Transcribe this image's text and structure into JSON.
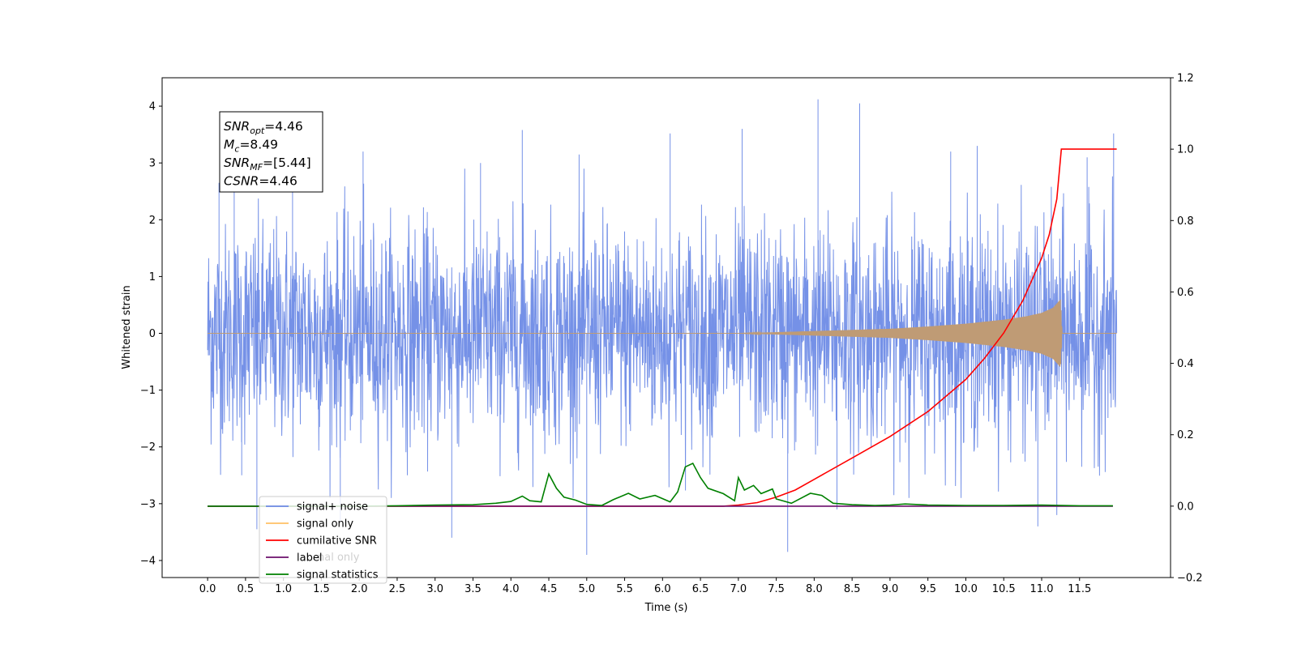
{
  "chart_data": {
    "type": "line",
    "title": "",
    "xlabel": "Time (s)",
    "ylabel": "Whitened strain",
    "ylabel_right": "",
    "xlim": [
      -0.6,
      12.7
    ],
    "ylim": [
      -4.3,
      4.5
    ],
    "ylim_right": [
      -0.2,
      1.2
    ],
    "x_ticks": [
      0.0,
      0.5,
      1.0,
      1.5,
      2.0,
      2.5,
      3.0,
      3.5,
      4.0,
      4.5,
      5.0,
      5.5,
      6.0,
      6.5,
      7.0,
      7.5,
      8.0,
      8.5,
      9.0,
      9.5,
      10.0,
      10.5,
      11.0,
      11.5
    ],
    "x_tick_labels": [
      "0.0",
      "0.5",
      "1.0",
      "1.5",
      "2.0",
      "2.5",
      "3.0",
      "3.5",
      "4.0",
      "4.5",
      "5.0",
      "5.5",
      "6.0",
      "6.5",
      "7.0",
      "7.5",
      "8.0",
      "8.5",
      "9.0",
      "9.5",
      "10.0",
      "10.5",
      "11.0",
      "11.5"
    ],
    "y_ticks": [
      4,
      3,
      2,
      1,
      0,
      -1,
      -2,
      -3,
      -4
    ],
    "y_tick_labels": [
      "4",
      "3",
      "2",
      "1",
      "0",
      "−1",
      "−2",
      "−3",
      "−4"
    ],
    "y_right_ticks": [
      1.2,
      1.0,
      0.8,
      0.6,
      0.4,
      0.2,
      0.0,
      -0.2
    ],
    "y_right_tick_labels": [
      "1.2",
      "1.0",
      "0.8",
      "0.6",
      "0.4",
      "0.2",
      "0.0",
      "−0.2"
    ],
    "grid": false,
    "legend_position": "lower-left",
    "legend": [
      {
        "label": "signal+ noise",
        "color": "#6e8be6"
      },
      {
        "label": "signal only",
        "color": "#ffc065"
      },
      {
        "label": "cumilative SNR",
        "color": "#ff0000"
      },
      {
        "label": "label",
        "color": "#6b0f6b"
      },
      {
        "label": "signal statistics",
        "color": "#008000"
      }
    ],
    "hidden_legend_fragment": "nal only",
    "annotation": {
      "lines": [
        {
          "main": "SNR",
          "sub": "opt",
          "rest": "=4.46"
        },
        {
          "main": "M",
          "sub": "c",
          "rest": "=8.49"
        },
        {
          "main": "SNR",
          "sub": "MF",
          "rest": "=[5.44]"
        },
        {
          "main": "CSNR",
          "sub": "",
          "rest": "=4.46"
        }
      ]
    },
    "series": [
      {
        "name": "signal+ noise",
        "axis": "left",
        "color": "#6e8be6",
        "x_range": [
          0.0,
          11.99
        ],
        "std": 0.95,
        "spikes": [
          {
            "x": 0.15,
            "y": 2.65
          },
          {
            "x": 0.35,
            "y": 2.5
          },
          {
            "x": 0.45,
            "y": -2.5
          },
          {
            "x": 0.65,
            "y": -3.45
          },
          {
            "x": 1.12,
            "y": 3.05
          },
          {
            "x": 1.75,
            "y": -3.3
          },
          {
            "x": 2.05,
            "y": 3.2
          },
          {
            "x": 3.22,
            "y": -3.6
          },
          {
            "x": 3.6,
            "y": 3.0
          },
          {
            "x": 4.15,
            "y": 3.58
          },
          {
            "x": 4.9,
            "y": 3.15
          },
          {
            "x": 5.0,
            "y": -3.9
          },
          {
            "x": 6.1,
            "y": 3.52
          },
          {
            "x": 7.05,
            "y": 3.6
          },
          {
            "x": 7.65,
            "y": -3.85
          },
          {
            "x": 8.05,
            "y": 4.12
          },
          {
            "x": 8.6,
            "y": 4.05
          },
          {
            "x": 8.3,
            "y": -3.1
          },
          {
            "x": 9.8,
            "y": 3.2
          },
          {
            "x": 10.15,
            "y": 3.3
          },
          {
            "x": 10.95,
            "y": -3.4
          },
          {
            "x": 11.2,
            "y": -3.2
          },
          {
            "x": 11.6,
            "y": 3.1
          },
          {
            "x": 11.95,
            "y": 3.52
          }
        ]
      },
      {
        "name": "signal only",
        "axis": "left",
        "color": "#bf9b75",
        "x_range": [
          0.0,
          11.99
        ],
        "envelope": [
          {
            "x": 0.0,
            "y": 0.0
          },
          {
            "x": 7.0,
            "y": 0.0
          },
          {
            "x": 7.5,
            "y": 0.02
          },
          {
            "x": 8.0,
            "y": 0.04
          },
          {
            "x": 8.5,
            "y": 0.06
          },
          {
            "x": 9.0,
            "y": 0.08
          },
          {
            "x": 9.5,
            "y": 0.12
          },
          {
            "x": 10.0,
            "y": 0.17
          },
          {
            "x": 10.5,
            "y": 0.24
          },
          {
            "x": 10.8,
            "y": 0.3
          },
          {
            "x": 11.0,
            "y": 0.36
          },
          {
            "x": 11.15,
            "y": 0.45
          },
          {
            "x": 11.25,
            "y": 0.6
          },
          {
            "x": 11.27,
            "y": 0.0
          },
          {
            "x": 11.99,
            "y": 0.0
          }
        ]
      },
      {
        "name": "cumilative SNR",
        "axis": "right",
        "color": "#ff0000",
        "points": [
          {
            "x": 0.0,
            "y": 0.0
          },
          {
            "x": 6.8,
            "y": 0.0
          },
          {
            "x": 7.0,
            "y": 0.003
          },
          {
            "x": 7.25,
            "y": 0.01
          },
          {
            "x": 7.5,
            "y": 0.025
          },
          {
            "x": 7.75,
            "y": 0.045
          },
          {
            "x": 8.0,
            "y": 0.075
          },
          {
            "x": 8.5,
            "y": 0.135
          },
          {
            "x": 9.0,
            "y": 0.195
          },
          {
            "x": 9.5,
            "y": 0.265
          },
          {
            "x": 10.0,
            "y": 0.355
          },
          {
            "x": 10.25,
            "y": 0.415
          },
          {
            "x": 10.5,
            "y": 0.485
          },
          {
            "x": 10.75,
            "y": 0.575
          },
          {
            "x": 11.0,
            "y": 0.695
          },
          {
            "x": 11.1,
            "y": 0.76
          },
          {
            "x": 11.2,
            "y": 0.86
          },
          {
            "x": 11.26,
            "y": 1.0
          },
          {
            "x": 11.99,
            "y": 1.0
          }
        ]
      },
      {
        "name": "label",
        "axis": "right",
        "color": "#6b0f6b",
        "points": [
          {
            "x": 0.0,
            "y": 0.0
          },
          {
            "x": 11.94,
            "y": 0.0
          }
        ]
      },
      {
        "name": "signal statistics",
        "axis": "right",
        "color": "#008000",
        "points": [
          {
            "x": 0.0,
            "y": 0.0
          },
          {
            "x": 2.0,
            "y": 0.0
          },
          {
            "x": 2.5,
            "y": 0.001
          },
          {
            "x": 3.0,
            "y": 0.003
          },
          {
            "x": 3.5,
            "y": 0.004
          },
          {
            "x": 3.8,
            "y": 0.008
          },
          {
            "x": 4.0,
            "y": 0.013
          },
          {
            "x": 4.15,
            "y": 0.028
          },
          {
            "x": 4.25,
            "y": 0.015
          },
          {
            "x": 4.4,
            "y": 0.012
          },
          {
            "x": 4.5,
            "y": 0.09
          },
          {
            "x": 4.6,
            "y": 0.05
          },
          {
            "x": 4.7,
            "y": 0.025
          },
          {
            "x": 4.85,
            "y": 0.017
          },
          {
            "x": 5.0,
            "y": 0.005
          },
          {
            "x": 5.2,
            "y": 0.002
          },
          {
            "x": 5.35,
            "y": 0.018
          },
          {
            "x": 5.55,
            "y": 0.036
          },
          {
            "x": 5.7,
            "y": 0.02
          },
          {
            "x": 5.9,
            "y": 0.03
          },
          {
            "x": 6.1,
            "y": 0.012
          },
          {
            "x": 6.2,
            "y": 0.04
          },
          {
            "x": 6.3,
            "y": 0.11
          },
          {
            "x": 6.4,
            "y": 0.12
          },
          {
            "x": 6.5,
            "y": 0.08
          },
          {
            "x": 6.6,
            "y": 0.05
          },
          {
            "x": 6.8,
            "y": 0.035
          },
          {
            "x": 6.95,
            "y": 0.015
          },
          {
            "x": 7.0,
            "y": 0.08
          },
          {
            "x": 7.08,
            "y": 0.045
          },
          {
            "x": 7.2,
            "y": 0.058
          },
          {
            "x": 7.3,
            "y": 0.035
          },
          {
            "x": 7.45,
            "y": 0.048
          },
          {
            "x": 7.5,
            "y": 0.02
          },
          {
            "x": 7.7,
            "y": 0.008
          },
          {
            "x": 7.95,
            "y": 0.036
          },
          {
            "x": 8.1,
            "y": 0.03
          },
          {
            "x": 8.25,
            "y": 0.008
          },
          {
            "x": 8.5,
            "y": 0.004
          },
          {
            "x": 8.8,
            "y": 0.002
          },
          {
            "x": 9.0,
            "y": 0.003
          },
          {
            "x": 9.2,
            "y": 0.006
          },
          {
            "x": 9.5,
            "y": 0.003
          },
          {
            "x": 10.0,
            "y": 0.002
          },
          {
            "x": 10.5,
            "y": 0.002
          },
          {
            "x": 11.0,
            "y": 0.003
          },
          {
            "x": 11.5,
            "y": 0.001
          },
          {
            "x": 11.94,
            "y": 0.001
          }
        ]
      }
    ]
  }
}
